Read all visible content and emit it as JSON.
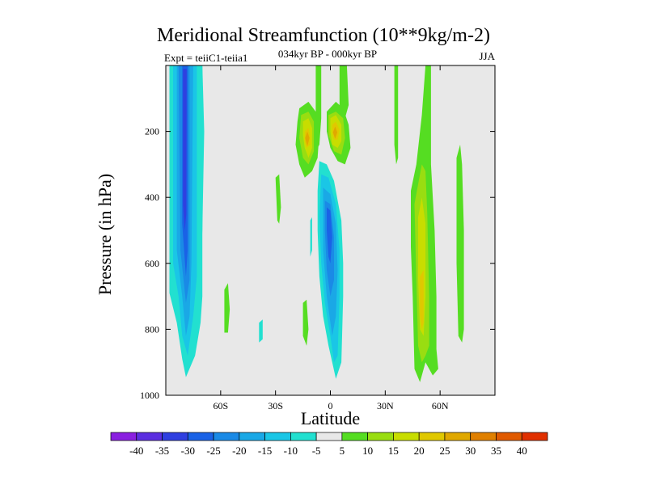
{
  "chart_data": {
    "type": "heatmap",
    "title": "Meridional Streamfunction (10**9kg/m-2)",
    "subtitle_left": "Expt = teiiC1-teiia1",
    "subtitle_center": "034kyr BP - 000kyr BP",
    "subtitle_right": "JJA",
    "xlabel": "Latitude",
    "ylabel": "Pressure (in hPa)",
    "xlim": [
      -90,
      90
    ],
    "ylim": [
      1000,
      0
    ],
    "x_ticks": [
      {
        "value": -60,
        "label": "60S"
      },
      {
        "value": -30,
        "label": "30S"
      },
      {
        "value": 0,
        "label": "0"
      },
      {
        "value": 30,
        "label": "30N"
      },
      {
        "value": 60,
        "label": "60N"
      }
    ],
    "y_ticks": [
      {
        "value": 200,
        "label": "200"
      },
      {
        "value": 400,
        "label": "400"
      },
      {
        "value": 600,
        "label": "600"
      },
      {
        "value": 800,
        "label": "800"
      },
      {
        "value": 1000,
        "label": "1000"
      }
    ],
    "background_color": "#e8e8e8",
    "colorbar": {
      "levels": [
        "-40",
        "-35",
        "-30",
        "-25",
        "-20",
        "-15",
        "-10",
        "-5",
        "5",
        "10",
        "15",
        "20",
        "25",
        "30",
        "35",
        "40"
      ],
      "colors": [
        "#8a1fe0",
        "#5b2ee0",
        "#2f3fe0",
        "#1a62e6",
        "#1a8ae6",
        "#1aa8e6",
        "#1ac6e6",
        "#22e0d0",
        "#e8e8e8",
        "#55dd22",
        "#99dd11",
        "#c8dd00",
        "#e0c800",
        "#e0a800",
        "#e08000",
        "#e05a00",
        "#e03000"
      ]
    },
    "features": [
      {
        "name": "southern polar negative cell",
        "lat_range": [
          -84,
          -70
        ],
        "p_range": [
          0,
          950
        ],
        "min_value": -30,
        "color_index": 2
      },
      {
        "name": "equatorial negative cell",
        "lat_range": [
          -8,
          8
        ],
        "p_range": [
          290,
          950
        ],
        "min_value": -25,
        "color_index": 3
      },
      {
        "name": "tropical positive cells",
        "lat_range": [
          -15,
          10
        ],
        "p_range": [
          0,
          320
        ],
        "max_value": 30,
        "color_index": 13
      },
      {
        "name": "northern midlatitude positive band",
        "lat_range": [
          45,
          53
        ],
        "p_range": [
          0,
          960
        ],
        "max_value": 20,
        "color_index": 11
      },
      {
        "name": "northern positive strip",
        "lat_range": [
          70,
          74
        ],
        "p_range": [
          240,
          840
        ],
        "max_value": 10,
        "color_index": 9
      }
    ]
  }
}
